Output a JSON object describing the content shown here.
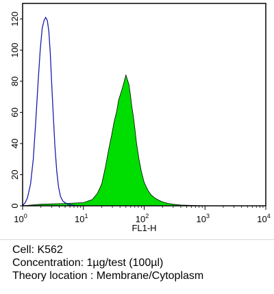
{
  "chart_data": {
    "type": "area",
    "xlabel": "FL1-H",
    "xscale": "log",
    "xlim": [
      1,
      10000
    ],
    "ylim": [
      0,
      130
    ],
    "yticks": [
      0,
      20,
      40,
      60,
      80,
      100,
      120
    ],
    "xticks": [
      {
        "base": "10",
        "exp": "0"
      },
      {
        "base": "10",
        "exp": "1"
      },
      {
        "base": "10",
        "exp": "2"
      },
      {
        "base": "10",
        "exp": "3"
      },
      {
        "base": "10",
        "exp": "4"
      }
    ],
    "series": [
      {
        "style": "outline",
        "color": "#1a1aa8",
        "x": [
          1.0,
          1.1,
          1.2,
          1.35,
          1.5,
          1.65,
          1.8,
          1.95,
          2.1,
          2.25,
          2.4,
          2.55,
          2.7,
          2.85,
          3.0,
          3.2,
          3.4,
          3.65,
          3.9,
          4.2,
          4.6,
          5.0,
          5.6,
          6.5,
          8.0,
          10.0
        ],
        "y": [
          0,
          2,
          5,
          14,
          30,
          55,
          80,
          100,
          114,
          119,
          121,
          119,
          112,
          98,
          80,
          58,
          38,
          22,
          12,
          6,
          3,
          2,
          1,
          0.5,
          0,
          0
        ]
      },
      {
        "style": "filled",
        "color": "#00dd00",
        "x": [
          1.0,
          2.0,
          5.0,
          10.0,
          14,
          17,
          20,
          23,
          26,
          29,
          32,
          35,
          38,
          41,
          44,
          47,
          50,
          53,
          56,
          59,
          62,
          66,
          70,
          75,
          82,
          90,
          100,
          115,
          130,
          150,
          175,
          200,
          250,
          300,
          400,
          1000,
          10000
        ],
        "y": [
          0,
          1,
          1.5,
          2,
          4,
          8,
          14,
          25,
          36,
          45,
          54,
          60,
          68,
          72,
          76,
          80,
          84,
          81,
          78,
          72,
          65,
          58,
          50,
          40,
          30,
          22,
          15,
          10,
          7,
          5,
          3.5,
          2.5,
          1.5,
          1,
          0.5,
          0,
          0
        ]
      }
    ]
  },
  "caption": {
    "cell": "Cell: K562",
    "concentration": "Concentration: 1µg/test (100µl)",
    "location": "Theory location : Membrane/Cytoplasm"
  }
}
